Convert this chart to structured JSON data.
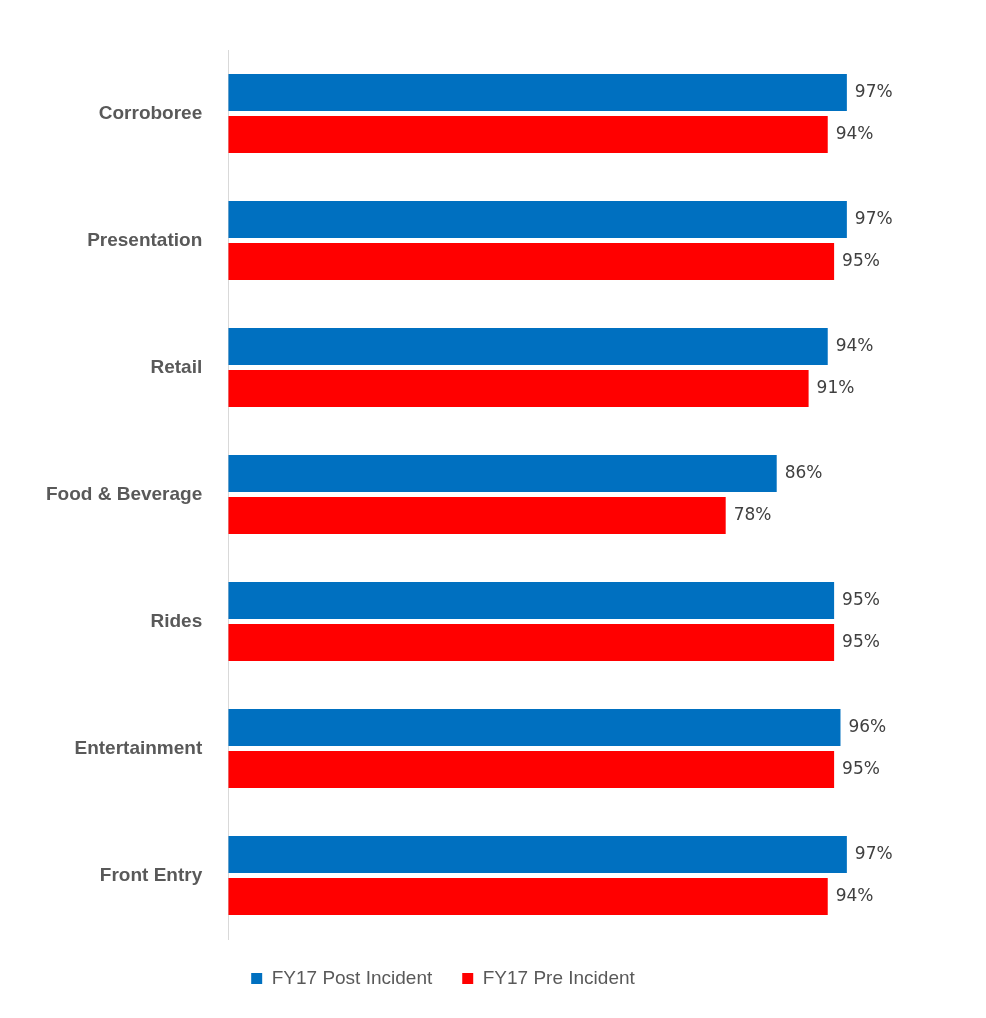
{
  "chart_data": {
    "type": "bar",
    "orientation": "horizontal",
    "categories": [
      "Corroboree",
      "Presentation",
      "Retail",
      "Food & Beverage",
      "Rides",
      "Entertainment",
      "Front Entry"
    ],
    "series": [
      {
        "name": "FY17 Post Incident",
        "color": "#0070c0",
        "values": [
          97,
          97,
          94,
          86,
          95,
          96,
          97
        ],
        "value_labels": [
          "97%",
          "97%",
          "94%",
          "86%",
          "95%",
          "96%",
          "97%"
        ]
      },
      {
        "name": "FY17 Pre Incident",
        "color": "#ff0000",
        "values": [
          94,
          95,
          91,
          78,
          95,
          95,
          94
        ],
        "value_labels": [
          "94%",
          "95%",
          "91%",
          "78%",
          "95%",
          "95%",
          "94%"
        ]
      }
    ],
    "tick_labels": "y",
    "grid": false,
    "legend": "bottom"
  }
}
